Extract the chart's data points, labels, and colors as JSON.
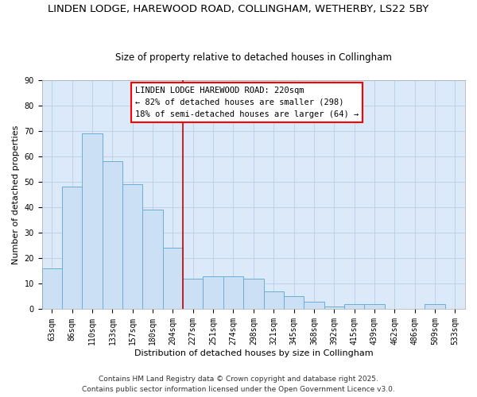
{
  "title_line1": "LINDEN LODGE, HAREWOOD ROAD, COLLINGHAM, WETHERBY, LS22 5BY",
  "title_line2": "Size of property relative to detached houses in Collingham",
  "xlabel": "Distribution of detached houses by size in Collingham",
  "ylabel": "Number of detached properties",
  "categories": [
    "63sqm",
    "86sqm",
    "110sqm",
    "133sqm",
    "157sqm",
    "180sqm",
    "204sqm",
    "227sqm",
    "251sqm",
    "274sqm",
    "298sqm",
    "321sqm",
    "345sqm",
    "368sqm",
    "392sqm",
    "415sqm",
    "439sqm",
    "462sqm",
    "486sqm",
    "509sqm",
    "533sqm"
  ],
  "values": [
    16,
    48,
    69,
    58,
    49,
    39,
    24,
    12,
    13,
    13,
    12,
    7,
    5,
    3,
    1,
    2,
    2,
    0,
    0,
    2,
    0
  ],
  "bar_color": "#cce0f5",
  "bar_edge_color": "#6baed6",
  "vline_color": "#cc0000",
  "vline_x_idx": 7,
  "ylim": [
    0,
    90
  ],
  "yticks": [
    0,
    10,
    20,
    30,
    40,
    50,
    60,
    70,
    80,
    90
  ],
  "annotation_title": "LINDEN LODGE HAREWOOD ROAD: 220sqm",
  "annotation_line2": "← 82% of detached houses are smaller (298)",
  "annotation_line3": "18% of semi-detached houses are larger (64) →",
  "footnote1": "Contains HM Land Registry data © Crown copyright and database right 2025.",
  "footnote2": "Contains public sector information licensed under the Open Government Licence v3.0.",
  "background_color": "#ffffff",
  "plot_bg_color": "#dce9f8",
  "grid_color": "#b8cfe8",
  "title_fontsize": 9.5,
  "subtitle_fontsize": 8.5,
  "axis_label_fontsize": 8,
  "tick_fontsize": 7,
  "annotation_fontsize": 7.5,
  "footnote_fontsize": 6.5
}
